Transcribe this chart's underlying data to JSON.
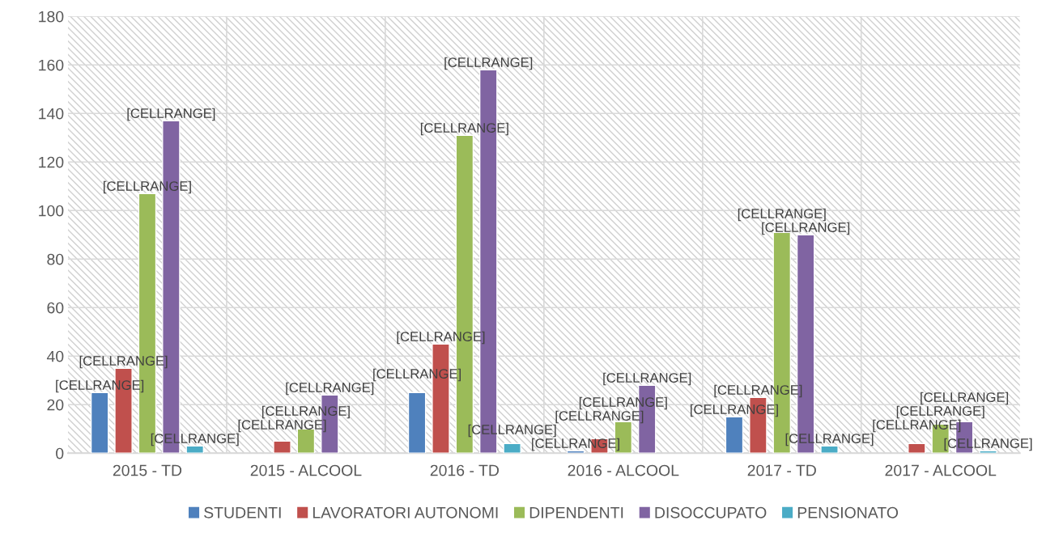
{
  "chart_data": {
    "type": "bar",
    "categories": [
      "2015 - TD",
      "2015 - ALCOOL",
      "2016 - TD",
      "2016 - ALCOOL",
      "2017 - TD",
      "2017 - ALCOOL"
    ],
    "series": [
      {
        "name": "STUDENTI",
        "color": "#4f81bd",
        "values": [
          25,
          null,
          25,
          1,
          15,
          null
        ],
        "value_labels": [
          "[CELLRANGE]",
          null,
          "[CELLRANGE]",
          "[CELLRANGE]",
          "[CELLRANGE]",
          null
        ]
      },
      {
        "name": "LAVORATORI AUTONOMI",
        "color": "#c0504d",
        "values": [
          35,
          5,
          45,
          6,
          23,
          4
        ],
        "value_labels": [
          "[CELLRANGE]",
          "[CELLRANGE]",
          "[CELLRANGE]",
          "[CELLRANGE]",
          "[CELLRANGE]",
          "[CELLRANGE]"
        ]
      },
      {
        "name": "DIPENDENTI",
        "color": "#9bbb59",
        "values": [
          107,
          10,
          131,
          13,
          91,
          12
        ],
        "value_labels": [
          "[CELLRANGE]",
          "[CELLRANGE]",
          "[CELLRANGE]",
          "[CELLRANGE]",
          "[CELLRANGE]",
          "[CELLRANGE]"
        ]
      },
      {
        "name": "DISOCCUPATO",
        "color": "#8064a2",
        "values": [
          137,
          24,
          158,
          28,
          90,
          13
        ],
        "value_labels": [
          "[CELLRANGE]",
          "[CELLRANGE]",
          "[CELLRANGE]",
          "[CELLRANGE]",
          "[CELLRANGE]",
          "[CELLRANGE]"
        ]
      },
      {
        "name": "PENSIONATO",
        "color": "#4bacc6",
        "values": [
          3,
          null,
          4,
          null,
          3,
          1
        ],
        "value_labels": [
          "[CELLRANGE]",
          null,
          "[CELLRANGE]",
          null,
          "[CELLRANGE]",
          "[CELLRANGE]"
        ]
      }
    ],
    "ylim": [
      0,
      180
    ],
    "yticks": [
      0,
      20,
      40,
      60,
      80,
      100,
      120,
      140,
      160,
      180
    ],
    "grid": true,
    "legend": "bottom"
  }
}
